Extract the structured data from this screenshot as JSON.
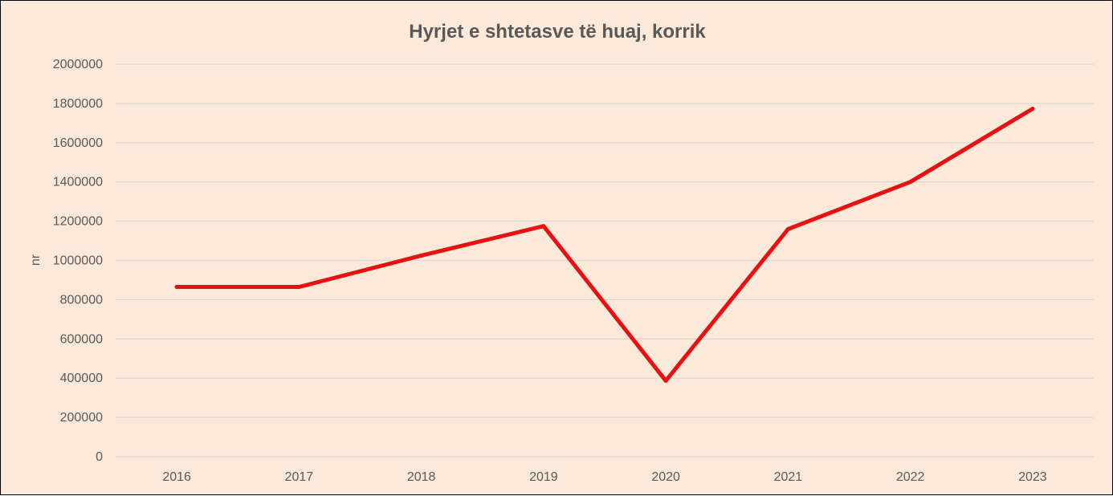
{
  "chart_data": {
    "type": "line",
    "title": "Hyrjet e shtetasve të huaj, korrik",
    "xlabel": "",
    "ylabel": "nr",
    "categories": [
      "2016",
      "2017",
      "2018",
      "2019",
      "2020",
      "2021",
      "2022",
      "2023"
    ],
    "series": [
      {
        "values": [
          865000,
          865000,
          1025000,
          1175000,
          387000,
          1160000,
          1400000,
          1773000
        ]
      }
    ],
    "ylim": [
      0,
      2000000
    ],
    "yticks": [
      "0",
      "200000",
      "400000",
      "600000",
      "800000",
      "1000000",
      "1200000",
      "1400000",
      "1600000",
      "1800000",
      "2000000"
    ],
    "grid": true,
    "legend": "none",
    "colors": {
      "background": "#fde9d9",
      "line": "#e81010",
      "grid": "#d9d9d9",
      "text": "#595959"
    }
  }
}
